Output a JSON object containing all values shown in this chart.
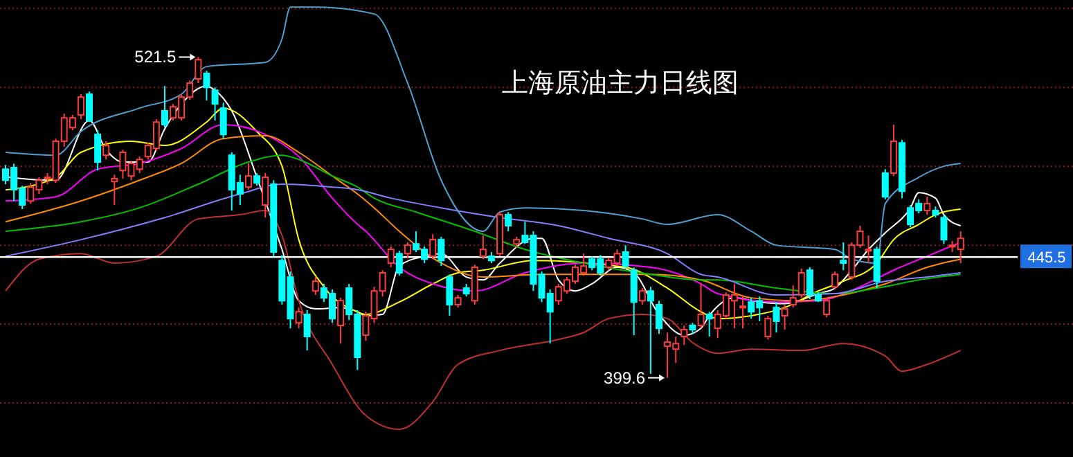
{
  "chart_data": {
    "type": "candlestick",
    "title": "上海原油主力日线图",
    "categories": [
      null,
      null,
      null,
      null,
      null,
      null,
      null,
      null,
      null,
      null,
      null,
      null,
      null,
      null,
      null,
      null,
      null,
      null,
      null,
      null,
      null,
      null,
      null,
      null,
      null,
      null,
      null,
      null,
      null,
      null,
      null,
      null,
      null,
      null,
      null,
      null,
      null,
      null,
      null,
      null,
      null,
      null,
      null,
      null,
      null,
      null,
      null,
      null,
      null,
      null,
      null,
      null,
      null,
      null,
      null,
      null,
      null,
      null,
      null,
      null,
      null,
      null,
      null,
      null,
      null,
      null,
      null,
      null,
      null,
      null,
      null,
      null,
      null,
      null,
      null,
      null,
      null,
      null,
      null,
      null,
      null,
      null,
      null,
      null,
      null,
      null,
      null,
      null,
      null,
      null,
      null,
      null,
      null,
      null,
      null,
      null,
      null,
      null,
      null,
      null,
      null,
      null,
      null,
      null,
      null,
      null,
      null,
      null,
      null,
      null,
      null,
      null,
      null,
      null,
      null
    ],
    "ohlc": [
      [
        478.9,
        480.5,
        473.2,
        474.7
      ],
      [
        479.5,
        481,
        466.8,
        471.1
      ],
      [
        471.6,
        472.6,
        463.7,
        465.3
      ],
      [
        466.8,
        473.7,
        465.8,
        472.1
      ],
      [
        471.1,
        475.8,
        469.5,
        474.7
      ],
      [
        475.3,
        477.4,
        473.2,
        475.8
      ],
      [
        474.7,
        490.5,
        473.7,
        489.5
      ],
      [
        489.5,
        500,
        487.4,
        498.4
      ],
      [
        494.7,
        499.5,
        493.7,
        498.4
      ],
      [
        499.5,
        507.4,
        497.9,
        506.3
      ],
      [
        507.4,
        508.4,
        496.8,
        497.4
      ],
      [
        492.1,
        493.7,
        478.4,
        481.6
      ],
      [
        484.2,
        489.5,
        482.6,
        487.9
      ],
      [
        474.2,
        476.8,
        465.3,
        475.3
      ],
      [
        478.4,
        486.3,
        475.3,
        485.3
      ],
      [
        476.3,
        482.1,
        474.7,
        481.1
      ],
      [
        478.9,
        483.7,
        477.4,
        482.6
      ],
      [
        483.7,
        489,
        482.6,
        487.9
      ],
      [
        486.8,
        497.9,
        485.8,
        496.8
      ],
      [
        501.1,
        510.5,
        494.7,
        495.8
      ],
      [
        498.4,
        503.7,
        497.4,
        502.6
      ],
      [
        498.4,
        507.4,
        497.4,
        506.3
      ],
      [
        506.3,
        512.6,
        505.3,
        511.6
      ],
      [
        513.2,
        521.5,
        511.6,
        520.5
      ],
      [
        515.3,
        516.3,
        505,
        510
      ],
      [
        508.9,
        510,
        497.4,
        503.7
      ],
      [
        502.1,
        504.2,
        490.5,
        492.1
      ],
      [
        484.2,
        485.3,
        463.2,
        471.1
      ],
      [
        473.7,
        476.8,
        465.3,
        469.5
      ],
      [
        472.1,
        481.1,
        471.1,
        476.3
      ],
      [
        476.3,
        477.4,
        472.6,
        473.7
      ],
      [
        465.3,
        477.4,
        460.5,
        475.8
      ],
      [
        473.2,
        474.7,
        445.8,
        447.4
      ],
      [
        444.2,
        446.3,
        427.4,
        428.9
      ],
      [
        437.9,
        440,
        418.4,
        422.1
      ],
      [
        420.5,
        426.3,
        418.4,
        424.7
      ],
      [
        423.7,
        425.3,
        410,
        415.3
      ],
      [
        432.6,
        437.9,
        431.1,
        436.3
      ],
      [
        433.7,
        435.3,
        428.4,
        430
      ],
      [
        431.6,
        433.2,
        420.5,
        422.1
      ],
      [
        419.5,
        430,
        412.6,
        428.9
      ],
      [
        433.7,
        435.3,
        421.6,
        423.7
      ],
      [
        423.7,
        425.3,
        402.6,
        407.4
      ],
      [
        415.8,
        424.7,
        413.7,
        423.2
      ],
      [
        422.1,
        434.2,
        420.5,
        432.6
      ],
      [
        432.6,
        440.5,
        430.5,
        439.5
      ],
      [
        443.2,
        449.5,
        441.6,
        448.4
      ],
      [
        446.8,
        447.9,
        438.4,
        439.5
      ],
      [
        446.8,
        451.1,
        445.3,
        450
      ],
      [
        450.5,
        455.3,
        447.4,
        448.4
      ],
      [
        448.4,
        449.5,
        443.2,
        444.7
      ],
      [
        445.8,
        454.2,
        444.7,
        452.1
      ],
      [
        452.1,
        453.2,
        442.1,
        444.2
      ],
      [
        437.9,
        438.9,
        423.2,
        427.4
      ],
      [
        427.4,
        431.1,
        426.3,
        430
      ],
      [
        433.7,
        435.3,
        430.5,
        431.6
      ],
      [
        428.9,
        442.6,
        427.4,
        441.6
      ],
      [
        445.8,
        453.7,
        444.7,
        448.4
      ],
      [
        445.8,
        447.4,
        443.2,
        444.2
      ],
      [
        446.8,
        462.6,
        445.8,
        461.6
      ],
      [
        461.6,
        462.6,
        455.3,
        457.4
      ],
      [
        450.5,
        453.2,
        449,
        452.1
      ],
      [
        453.7,
        458.9,
        450.5,
        451.1
      ],
      [
        453.7,
        455.3,
        432.6,
        435.3
      ],
      [
        438.9,
        440,
        428.4,
        430
      ],
      [
        431.6,
        433.2,
        412.6,
        424.7
      ],
      [
        428.9,
        435.3,
        427.4,
        434.2
      ],
      [
        432.6,
        437.9,
        431.6,
        436.8
      ],
      [
        436.3,
        442.6,
        435.3,
        441.6
      ],
      [
        439.5,
        446.8,
        438.4,
        442.1
      ],
      [
        444.7,
        445.8,
        440.5,
        441.6
      ],
      [
        444.7,
        446.3,
        438.4,
        439.5
      ],
      [
        441.6,
        445.3,
        440.5,
        444.2
      ],
      [
        443.2,
        448.4,
        442.1,
        446.8
      ],
      [
        447.4,
        450,
        441.1,
        442.1
      ],
      [
        440.5,
        441.6,
        415.8,
        428.4
      ],
      [
        428.9,
        433.7,
        427.4,
        432.6
      ],
      [
        432.6,
        434.2,
        401.1,
        428.9
      ],
      [
        427.4,
        428.9,
        416.3,
        418.4
      ],
      [
        411.6,
        416.8,
        399.6,
        413.2
      ],
      [
        410.5,
        415.3,
        405.3,
        412.6
      ],
      [
        415.3,
        419.5,
        412.1,
        417.9
      ],
      [
        419.5,
        420.5,
        416.3,
        417.9
      ],
      [
        419.5,
        435.3,
        418.4,
        423.7
      ],
      [
        423.7,
        424.7,
        415.3,
        422.1
      ],
      [
        418.4,
        425.3,
        414.7,
        423.7
      ],
      [
        423.2,
        432.1,
        422.1,
        431.1
      ],
      [
        428.9,
        435.3,
        418.4,
        431.1
      ],
      [
        426.3,
        431.1,
        418.4,
        426.8
      ],
      [
        428.4,
        430,
        422.1,
        424.7
      ],
      [
        428.9,
        430.5,
        421.1,
        426.3
      ],
      [
        415.3,
        423.2,
        414.2,
        422.1
      ],
      [
        426.3,
        428.4,
        416.8,
        421.1
      ],
      [
        423.2,
        427.4,
        417.9,
        425.8
      ],
      [
        427.4,
        434.7,
        426.3,
        430
      ],
      [
        431.1,
        441.1,
        430,
        439.5
      ],
      [
        440.5,
        441.6,
        429.5,
        431.1
      ],
      [
        431.1,
        432.1,
        428.4,
        428.9
      ],
      [
        423.7,
        430,
        422.6,
        428.9
      ],
      [
        434.2,
        440,
        433.2,
        438.9
      ],
      [
        444.2,
        451.1,
        440.5,
        443.2
      ],
      [
        437.9,
        451.1,
        436.8,
        450
      ],
      [
        450,
        457.4,
        449,
        455.3
      ],
      [
        448.4,
        453.7,
        443.2,
        448.4
      ],
      [
        448.4,
        449.5,
        433.7,
        436.3
      ],
      [
        477.4,
        478.9,
        467.4,
        468.4
      ],
      [
        477.4,
        495.8,
        476.3,
        489.5
      ],
      [
        488.9,
        490,
        467.9,
        470.5
      ],
      [
        464.2,
        465.3,
        456.8,
        457.9
      ],
      [
        465.8,
        467.4,
        462.1,
        463.2
      ],
      [
        463.2,
        468.4,
        461.6,
        465.8
      ],
      [
        463.2,
        464.7,
        460.5,
        461.6
      ],
      [
        460.5,
        461.6,
        450.5,
        452.1
      ],
      [
        449.5,
        451.6,
        447.4,
        450
      ],
      [
        448.4,
        455.3,
        443.2,
        452.6
      ]
    ],
    "series": [
      {
        "type": "line",
        "color": "#ffffff",
        "values": [
          476,
          null,
          null,
          null,
          null,
          474.7,
          474.7,
          null,
          null,
          null,
          497.4,
          null,
          486.3,
          null,
          481.6,
          null,
          null,
          481.6,
          null,
          494.2,
          null,
          503.7,
          null,
          null,
          510.5,
          508.9,
          null,
          501.1,
          null,
          null,
          475.8,
          null,
          null,
          448.4,
          null,
          428.9,
          null,
          425.8,
          null,
          null,
          426.3,
          null,
          424.7,
          423.2,
          null,
          423.7,
          null,
          442.1,
          null,
          null,
          445.8,
          null,
          446.8,
          null,
          null,
          437.9,
          null,
          436.8,
          null,
          443.2,
          null,
          null,
          null,
          452.6,
          452.6,
          null,
          436.8,
          null,
          432.6,
          null,
          435.3,
          null,
          null,
          441.6,
          null,
          439.5,
          null,
          null,
          423.7,
          null,
          null,
          415.8,
          null,
          418.4,
          423.2,
          null,
          null,
          430,
          null,
          null,
          428.4,
          null,
          null,
          427.8,
          null,
          null,
          null,
          431.6,
          null,
          433.7,
          null,
          440.5,
          null,
          448.4,
          null,
          454.7,
          null,
          null,
          464.2,
          470,
          null,
          467.9,
          461.6,
          null,
          457.4
        ]
      },
      {
        "type": "line",
        "color": "#ffff00",
        "values": [
          471,
          null,
          null,
          null,
          null,
          null,
          475.8,
          null,
          null,
          485.3,
          null,
          null,
          null,
          null,
          null,
          489.5,
          null,
          null,
          null,
          487.9,
          null,
          null,
          null,
          null,
          496.8,
          null,
          502.1,
          null,
          null,
          null,
          493.2,
          null,
          null,
          480,
          null,
          452.1,
          null,
          null,
          434.2,
          null,
          null,
          null,
          424.7,
          423.7,
          null,
          null,
          null,
          428.4,
          null,
          null,
          null,
          435.3,
          null,
          null,
          439.5,
          null,
          null,
          440.5,
          null,
          null,
          null,
          null,
          null,
          444.2,
          null,
          null,
          null,
          null,
          null,
          null,
          null,
          null,
          null,
          null,
          441.6,
          null,
          null,
          null,
          null,
          433.7,
          null,
          null,
          null,
          424.7,
          null,
          422.1,
          null,
          null,
          null,
          423.2,
          null,
          null,
          null,
          426.3,
          null,
          null,
          null,
          432.6,
          null,
          null,
          436.3,
          null,
          null,
          null,
          443.2,
          null,
          452.1,
          null,
          null,
          457.9,
          null,
          461.6,
          null,
          null,
          463.7
        ]
      },
      {
        "type": "line",
        "color": "#ff00ff",
        "values": [
          466.8,
          null,
          null,
          null,
          null,
          null,
          468.4,
          null,
          null,
          null,
          null,
          478.9,
          null,
          null,
          null,
          null,
          481.1,
          null,
          null,
          null,
          null,
          486.8,
          null,
          null,
          null,
          null,
          495.8,
          null,
          null,
          null,
          null,
          492.1,
          null,
          null,
          null,
          483.7,
          null,
          null,
          null,
          467.9,
          null,
          null,
          458,
          455.3,
          null,
          null,
          null,
          441.6,
          null,
          null,
          null,
          435.3,
          null,
          null,
          null,
          null,
          432.6,
          null,
          null,
          null,
          null,
          null,
          439.5,
          null,
          null,
          null,
          null,
          null,
          null,
          443.2,
          null,
          null,
          null,
          null,
          null,
          null,
          null,
          441.6,
          null,
          null,
          null,
          null,
          null,
          435.3,
          null,
          431.6,
          null,
          null,
          null,
          null,
          null,
          null,
          428.4,
          null,
          null,
          null,
          null,
          428.9,
          null,
          null,
          null,
          null,
          434.2,
          null,
          null,
          null,
          440.5,
          null,
          null,
          null,
          445.8,
          null,
          null,
          null,
          451.1
        ]
      },
      {
        "type": "line",
        "color": "#ff8c00",
        "values": [
          458.9,
          null,
          null,
          null,
          null,
          null,
          null,
          null,
          null,
          466.8,
          null,
          null,
          null,
          null,
          null,
          null,
          474.7,
          null,
          null,
          null,
          null,
          481.1,
          null,
          null,
          null,
          null,
          490.5,
          null,
          null,
          null,
          null,
          491.6,
          null,
          null,
          null,
          485.3,
          null,
          null,
          null,
          476.3,
          null,
          null,
          469.5,
          null,
          464.2,
          null,
          null,
          455.3,
          null,
          null,
          null,
          null,
          443.2,
          null,
          null,
          null,
          null,
          437.9,
          null,
          null,
          null,
          null,
          null,
          null,
          438.9,
          null,
          null,
          null,
          null,
          null,
          null,
          438.9,
          null,
          null,
          null,
          null,
          null,
          438.9,
          null,
          null,
          null,
          null,
          null,
          436.8,
          null,
          null,
          null,
          null,
          null,
          430,
          null,
          null,
          null,
          null,
          null,
          428.9,
          null,
          null,
          null,
          null,
          431.1,
          null,
          null,
          null,
          null,
          435.3,
          null,
          null,
          null,
          null,
          441.6,
          null,
          null,
          null,
          444.7
        ]
      },
      {
        "type": "line",
        "color": "#00c000",
        "values": [
          455.3,
          null,
          null,
          null,
          null,
          null,
          null,
          null,
          null,
          458.9,
          null,
          null,
          null,
          null,
          null,
          null,
          464.2,
          null,
          null,
          null,
          null,
          null,
          null,
          473.2,
          null,
          null,
          null,
          null,
          null,
          481.6,
          null,
          null,
          null,
          484.2,
          null,
          482.6,
          null,
          null,
          null,
          476.3,
          null,
          null,
          472.1,
          null,
          467.9,
          null,
          null,
          null,
          null,
          462.6,
          null,
          null,
          null,
          null,
          null,
          null,
          455.3,
          null,
          null,
          null,
          null,
          null,
          448.4,
          null,
          null,
          null,
          null,
          null,
          null,
          443.2,
          null,
          null,
          null,
          null,
          null,
          null,
          null,
          438.9,
          null,
          null,
          null,
          null,
          null,
          436.8,
          null,
          436.8,
          null,
          null,
          null,
          null,
          null,
          null,
          433.7,
          null,
          null,
          null,
          null,
          null,
          null,
          431.6,
          null,
          null,
          null,
          null,
          433.7,
          null,
          null,
          null,
          null,
          436.8,
          null,
          null,
          null,
          null,
          438.9
        ]
      },
      {
        "type": "line",
        "color": "#8080ff",
        "values": [
          445.8,
          null,
          null,
          null,
          null,
          null,
          null,
          null,
          null,
          452.1,
          null,
          null,
          null,
          null,
          null,
          null,
          null,
          null,
          null,
          460.5,
          null,
          null,
          null,
          null,
          null,
          null,
          null,
          null,
          469.5,
          null,
          null,
          null,
          null,
          473.2,
          null,
          null,
          null,
          null,
          null,
          472.1,
          null,
          null,
          471.1,
          null,
          null,
          null,
          467.9,
          null,
          null,
          null,
          null,
          null,
          464.2,
          null,
          null,
          null,
          null,
          null,
          null,
          460.5,
          null,
          null,
          null,
          null,
          null,
          null,
          457.4,
          null,
          null,
          null,
          null,
          null,
          452.6,
          null,
          null,
          null,
          null,
          null,
          null,
          446.8,
          null,
          null,
          null,
          438.9,
          null,
          437.9,
          null,
          null,
          null,
          null,
          null,
          null,
          431.1,
          null,
          null,
          null,
          null,
          null,
          null,
          431.6,
          null,
          null,
          null,
          null,
          null,
          436.3,
          null,
          null,
          null,
          null,
          437.9,
          null,
          null,
          null,
          439.5
        ]
      },
      {
        "type": "line",
        "color": "#4f9fd0",
        "values": [
          485.3,
          null,
          null,
          null,
          null,
          null,
          484.2,
          null,
          null,
          493.2,
          null,
          null,
          null,
          null,
          null,
          null,
          502.1,
          null,
          null,
          null,
          null,
          507.4,
          null,
          null,
          517.9,
          null,
          null,
          null,
          null,
          null,
          null,
          519.5,
          null,
          528.4,
          540.5,
          null,
          null,
          540.5,
          null,
          null,
          null,
          null,
          null,
          null,
          537.9,
          null,
          null,
          null,
          511.6,
          null,
          null,
          null,
          474.7,
          null,
          null,
          null,
          null,
          455.3,
          null,
          462.6,
          null,
          null,
          464.2,
          null,
          null,
          null,
          null,
          null,
          null,
          463.2,
          null,
          null,
          null,
          null,
          null,
          null,
          460,
          null,
          null,
          457.9,
          null,
          null,
          null,
          null,
          null,
          461.6,
          null,
          null,
          null,
          455.3,
          null,
          null,
          450,
          null,
          null,
          null,
          null,
          null,
          null,
          448.4,
          null,
          444.7,
          null,
          null,
          443.2,
          465.8,
          null,
          null,
          null,
          475.8,
          null,
          null,
          480,
          null,
          481.1
        ]
      },
      {
        "type": "line",
        "color": "#c03030",
        "values": [
          432.6,
          null,
          null,
          null,
          444.7,
          null,
          null,
          null,
          null,
          446.8,
          null,
          null,
          null,
          443.2,
          null,
          null,
          null,
          null,
          445.8,
          null,
          null,
          null,
          null,
          460,
          null,
          null,
          null,
          null,
          461.6,
          null,
          null,
          463.2,
          null,
          453.7,
          null,
          428.9,
          null,
          null,
          null,
          404.7,
          null,
          null,
          null,
          385.3,
          null,
          null,
          null,
          380,
          null,
          null,
          null,
          390.5,
          null,
          null,
          404.7,
          null,
          null,
          null,
          null,
          410,
          null,
          null,
          null,
          null,
          null,
          null,
          414.2,
          null,
          null,
          416.8,
          null,
          null,
          422.1,
          null,
          null,
          null,
          423.7,
          null,
          null,
          422.1,
          null,
          null,
          413,
          null,
          null,
          408.9,
          null,
          null,
          null,
          410.5,
          null,
          null,
          null,
          null,
          null,
          410,
          null,
          null,
          null,
          null,
          412.6,
          null,
          null,
          null,
          null,
          407.9,
          null,
          402.1,
          null,
          null,
          404.7,
          null,
          null,
          null,
          410
        ]
      }
    ],
    "ylim": [
      369.5,
      543.2
    ],
    "yticks": [
      {
        "value": 390,
        "label": null
      },
      {
        "value": 420,
        "label": null
      },
      {
        "value": 450,
        "label": null
      },
      {
        "value": 480,
        "label": null
      },
      {
        "value": 510,
        "label": null
      },
      {
        "value": 540,
        "label": null
      }
    ],
    "grid": "y",
    "ref_lines": [
      {
        "axis": "y",
        "value": 445.5,
        "label": "445.5",
        "color": "#ffffff"
      }
    ],
    "annotations": [
      "521.5",
      "399.6"
    ]
  }
}
